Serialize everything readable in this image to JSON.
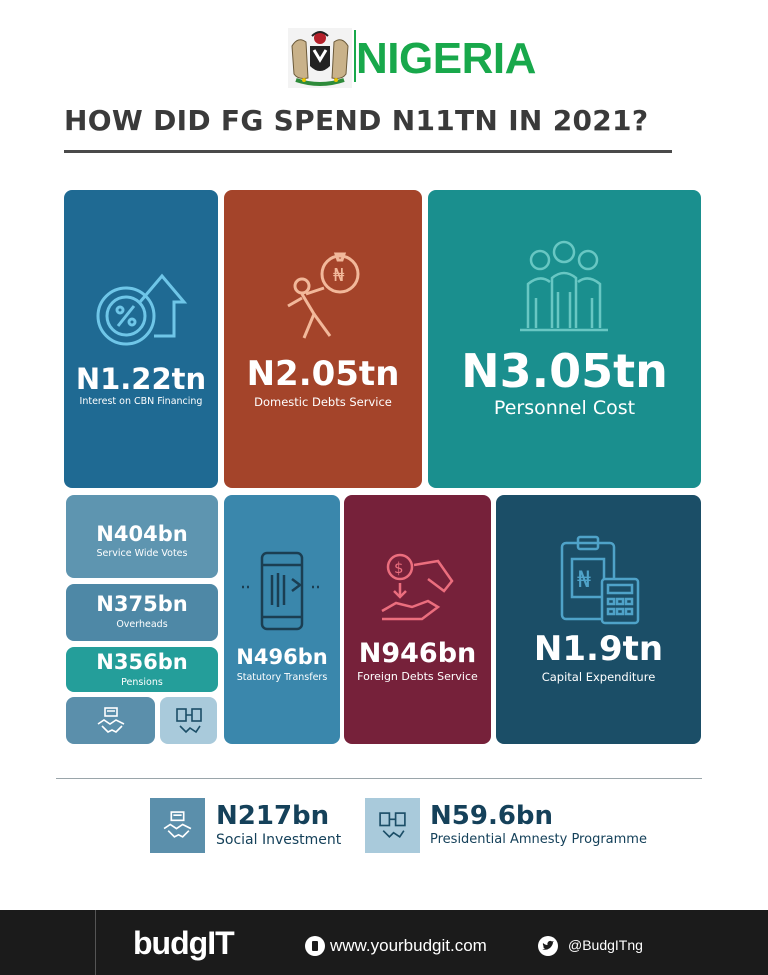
{
  "header": {
    "country": "NIGERIA",
    "headline": "HOW DID FG SPEND N11TN IN 2021?"
  },
  "tiles": {
    "cbn": {
      "amount": "N1.22tn",
      "label": "Interest on CBN Financing",
      "icon": "percent-house-icon"
    },
    "domestic": {
      "amount": "N2.05tn",
      "label": "Domestic Debts Service",
      "icon": "person-carrying-naira-bag-icon"
    },
    "personnel": {
      "amount": "N3.05tn",
      "label": "Personnel Cost",
      "icon": "group-of-people-icon"
    },
    "service": {
      "amount": "N404bn",
      "label": "Service Wide Votes"
    },
    "overheads": {
      "amount": "N375bn",
      "label": "Overheads"
    },
    "pensions": {
      "amount": "N356bn",
      "label": "Pensions"
    },
    "statutory": {
      "amount": "N496bn",
      "label": "Statutory Transfers",
      "icon": "mobile-transfer-icon"
    },
    "foreign": {
      "amount": "N946bn",
      "label": "Foreign Debts Service",
      "icon": "dollar-hand-icon"
    },
    "capital": {
      "amount": "N1.9tn",
      "label": "Capital Expenditure",
      "icon": "clipboard-calculator-icon"
    }
  },
  "legend": {
    "social": {
      "amount": "N217bn",
      "label": "Social Investment",
      "icon": "handshake-icon"
    },
    "amnesty": {
      "amount": "N59.6bn",
      "label": "Presidential Amnesty Programme",
      "icon": "document-handshake-icon"
    }
  },
  "footer": {
    "brand": "budgIT",
    "website": "www.yourbudgit.com",
    "twitter": "@BudgITng"
  },
  "colors": {
    "green": "#18a84b",
    "cbn": "#1f6a93",
    "domestic": "#a4442a",
    "personnel": "#1a8f8e",
    "foreign": "#76213a",
    "capital": "#1b4e67"
  }
}
